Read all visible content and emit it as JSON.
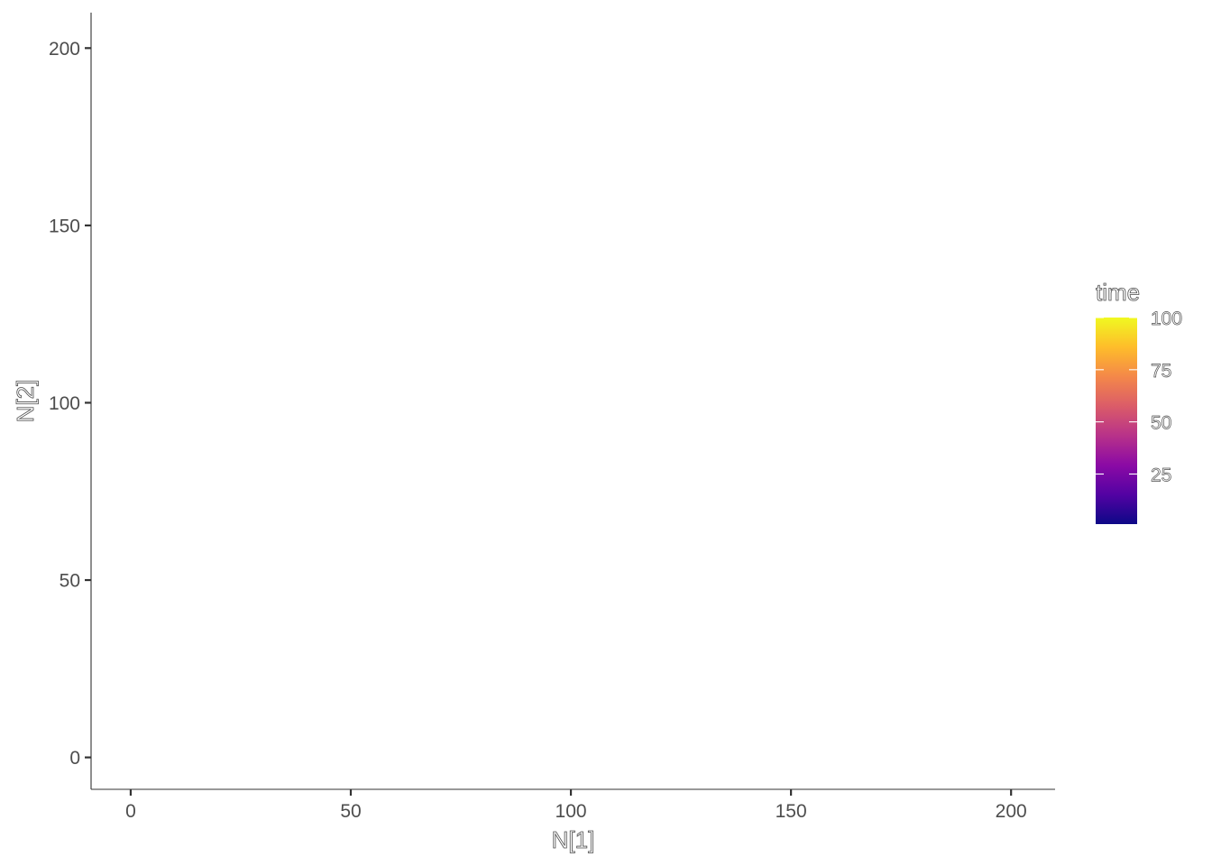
{
  "chart_data": {
    "type": "line",
    "title": "",
    "xlabel": "N[1]",
    "ylabel": "N[2]",
    "xlim": [
      -9,
      210
    ],
    "ylim": [
      -9,
      210
    ],
    "x_ticks": [
      0,
      50,
      100,
      150,
      200
    ],
    "y_ticks": [
      0,
      50,
      100,
      150,
      200
    ],
    "x_tick_labels": [
      "0",
      "50",
      "100",
      "150",
      "200"
    ],
    "y_tick_labels": [
      "0",
      "50",
      "100",
      "150",
      "200"
    ],
    "series": [],
    "grid": false,
    "color_scale": {
      "title": "time",
      "palette": "plasma",
      "colors": [
        "#0d0887",
        "#5302a3",
        "#8b0aa5",
        "#b83289",
        "#db5c68",
        "#f48849",
        "#febd2a",
        "#f0f921"
      ],
      "range": [
        1,
        100
      ],
      "ticks": [
        25,
        50,
        75,
        100
      ],
      "tick_labels": [
        "25",
        "50",
        "75",
        "100"
      ],
      "position": "right"
    }
  }
}
